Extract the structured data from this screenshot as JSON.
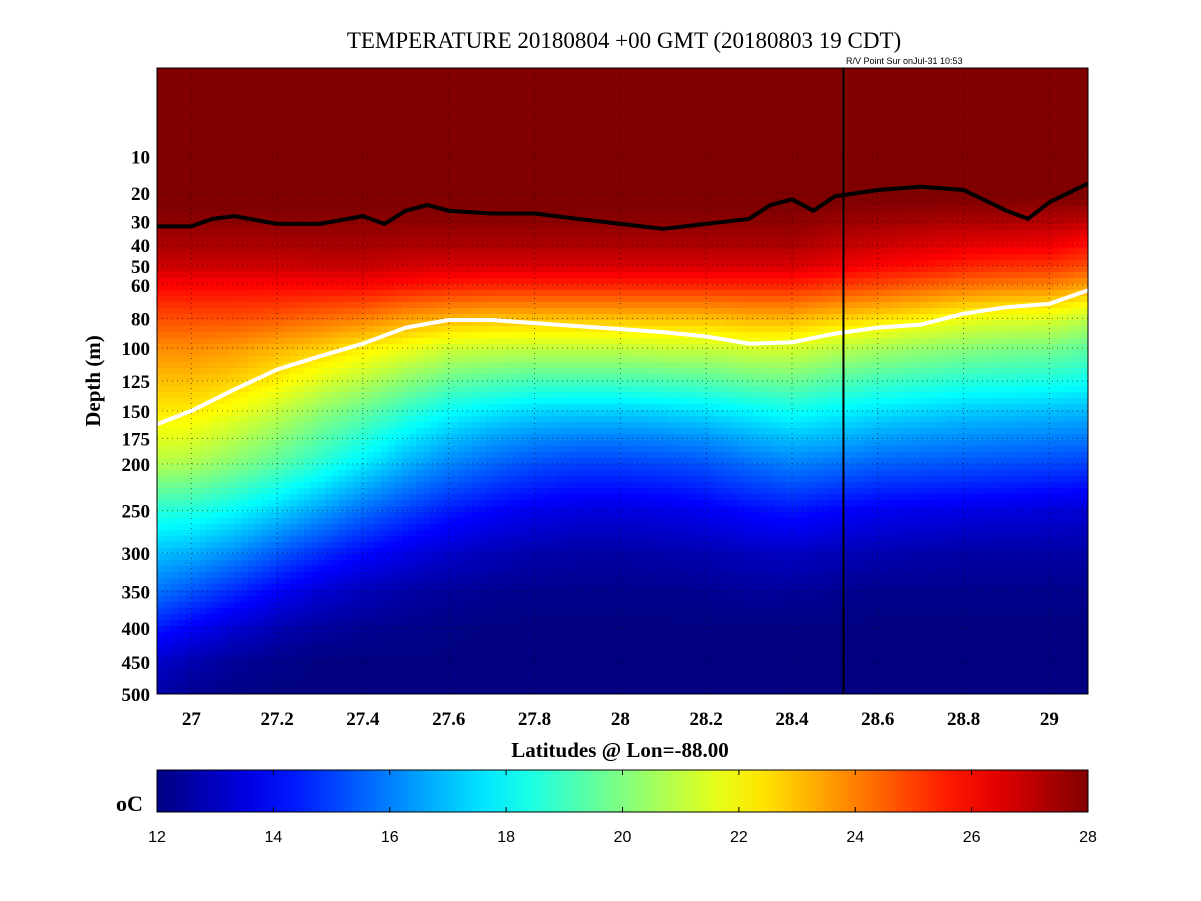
{
  "chart_data": {
    "type": "heatmap",
    "title": "TEMPERATURE 20180804 +00 GMT (20180803 19 CDT)",
    "note": "R/V Point Sur onJul-31 10:53",
    "xlabel": "Latitudes @ Lon=-88.00",
    "ylabel": "Depth (m)",
    "xlim": [
      26.92,
      29.09
    ],
    "ylim": [
      0,
      500
    ],
    "xticks": [
      27,
      27.2,
      27.4,
      27.6,
      27.8,
      28,
      28.2,
      28.4,
      28.6,
      28.8,
      29
    ],
    "xtick_labels": [
      "27",
      "27.2",
      "27.4",
      "27.6",
      "27.8",
      "28",
      "28.2",
      "28.4",
      "28.6",
      "28.8",
      "29"
    ],
    "yticks": [
      10,
      20,
      30,
      40,
      50,
      60,
      80,
      100,
      125,
      150,
      175,
      200,
      250,
      300,
      350,
      400,
      450,
      500
    ],
    "ytick_labels": [
      "10",
      "20",
      "30",
      "40",
      "50",
      "60",
      "80",
      "100",
      "125",
      "150",
      "175",
      "200",
      "250",
      "300",
      "350",
      "400",
      "450",
      "500"
    ],
    "y_scale": "square-root",
    "grid": true,
    "colorbar": {
      "label": "oC",
      "range": [
        12,
        28
      ],
      "ticks": [
        12,
        14,
        16,
        18,
        20,
        22,
        24,
        26,
        28
      ],
      "tick_labels": [
        "12",
        "14",
        "16",
        "18",
        "20",
        "22",
        "24",
        "26",
        "28"
      ],
      "colormap": "jet",
      "placement": "bottom"
    },
    "vertical_line": {
      "x": 28.52,
      "color": "#000000"
    },
    "isotherm_black": {
      "color": "#000000",
      "x": [
        26.92,
        27.0,
        27.05,
        27.1,
        27.2,
        27.3,
        27.4,
        27.45,
        27.5,
        27.55,
        27.6,
        27.7,
        27.8,
        27.9,
        28.0,
        28.1,
        28.2,
        28.3,
        28.35,
        28.4,
        28.45,
        28.5,
        28.6,
        28.7,
        28.8,
        28.9,
        28.95,
        29.0,
        29.09
      ],
      "y": [
        32,
        32,
        29,
        28,
        31,
        31,
        28,
        31,
        26,
        24,
        26,
        27,
        27,
        29,
        31,
        33,
        31,
        29,
        24,
        22,
        26,
        21,
        19,
        18,
        19,
        26,
        29,
        23,
        17
      ]
    },
    "isotherm_white": {
      "color": "#ffffff",
      "x": [
        26.92,
        27.0,
        27.1,
        27.2,
        27.3,
        27.4,
        27.5,
        27.6,
        27.7,
        27.8,
        27.9,
        28.0,
        28.1,
        28.2,
        28.3,
        28.4,
        28.5,
        28.6,
        28.7,
        28.8,
        28.9,
        29.0,
        29.09
      ],
      "y": [
        162,
        150,
        132,
        116,
        106,
        97,
        86,
        81,
        81,
        83,
        85,
        87,
        89,
        92,
        97,
        96,
        90,
        86,
        84,
        77,
        73,
        71,
        63
      ]
    },
    "temperature_field": {
      "x": [
        26.92,
        27.0,
        27.1,
        27.2,
        27.3,
        27.4,
        27.5,
        27.6,
        27.7,
        27.8,
        27.9,
        28.0,
        28.1,
        28.2,
        28.3,
        28.4,
        28.5,
        28.6,
        28.7,
        28.8,
        28.9,
        29.0,
        29.09
      ],
      "depth": [
        0,
        10,
        20,
        30,
        40,
        50,
        60,
        80,
        100,
        125,
        150,
        175,
        200,
        250,
        300,
        350,
        400,
        450,
        500
      ],
      "values": [
        [
          28.5,
          28.5,
          28.5,
          28.5,
          28.5,
          28.5,
          28.5,
          28.5,
          28.5,
          28.5,
          28.5,
          28.5,
          28.5,
          28.5,
          28.5,
          28.5,
          28.5,
          28.5,
          28.5,
          28.5,
          28.5,
          28.5,
          28.5
        ],
        [
          28.5,
          28.5,
          28.5,
          28.5,
          28.5,
          28.5,
          28.5,
          28.5,
          28.5,
          28.5,
          28.5,
          28.5,
          28.5,
          28.5,
          28.5,
          28.5,
          28.5,
          28.5,
          28.5,
          28.5,
          28.5,
          28.5,
          28.5
        ],
        [
          28.2,
          28.2,
          28.2,
          28.2,
          28.2,
          28.2,
          28.2,
          28.2,
          28.2,
          28.2,
          28.2,
          28.2,
          28.2,
          28.2,
          28.2,
          28.2,
          28.2,
          28.2,
          28.2,
          28.2,
          28.2,
          28.2,
          28.2
        ],
        [
          27.8,
          27.8,
          27.8,
          27.8,
          27.8,
          27.8,
          27.8,
          27.8,
          27.8,
          27.8,
          27.8,
          27.8,
          27.8,
          27.8,
          27.8,
          27.8,
          27.6,
          27.5,
          27.4,
          27.3,
          27.3,
          27.2,
          27.0
        ],
        [
          27.3,
          27.3,
          27.3,
          27.3,
          27.4,
          27.4,
          27.3,
          27.3,
          27.3,
          27.3,
          27.3,
          27.3,
          27.3,
          27.3,
          27.3,
          27.3,
          27.0,
          26.8,
          26.6,
          26.4,
          26.3,
          26.2,
          25.8
        ],
        [
          26.8,
          26.8,
          26.8,
          26.8,
          26.9,
          26.9,
          26.7,
          26.6,
          26.6,
          26.6,
          26.6,
          26.6,
          26.6,
          26.6,
          26.6,
          26.6,
          26.3,
          26.0,
          25.8,
          25.5,
          25.3,
          25.2,
          24.8
        ],
        [
          26.0,
          26.0,
          26.0,
          26.0,
          26.0,
          26.0,
          25.8,
          25.6,
          25.5,
          25.5,
          25.5,
          25.5,
          25.5,
          25.5,
          25.5,
          25.5,
          25.2,
          24.9,
          24.6,
          24.3,
          24.1,
          24.0,
          23.5
        ],
        [
          24.8,
          24.8,
          24.8,
          24.6,
          24.3,
          24.0,
          23.5,
          23.2,
          23.0,
          23.0,
          23.0,
          23.0,
          23.0,
          23.0,
          23.2,
          23.2,
          22.8,
          22.5,
          22.2,
          21.8,
          21.6,
          21.5,
          21.0
        ],
        [
          23.8,
          23.8,
          23.6,
          23.2,
          22.8,
          22.3,
          21.8,
          21.3,
          21.2,
          21.1,
          21.1,
          21.1,
          21.2,
          21.2,
          21.4,
          21.4,
          21.0,
          20.7,
          20.4,
          20.2,
          20.0,
          19.9,
          19.5
        ],
        [
          23.0,
          23.0,
          22.7,
          22.2,
          21.5,
          20.9,
          20.2,
          19.6,
          19.3,
          19.1,
          19.1,
          19.1,
          19.2,
          19.3,
          19.6,
          19.7,
          19.3,
          19.0,
          18.8,
          18.6,
          18.5,
          18.4,
          18.2
        ],
        [
          22.3,
          22.3,
          21.8,
          21.1,
          20.3,
          19.6,
          18.8,
          18.1,
          17.7,
          17.4,
          17.3,
          17.3,
          17.4,
          17.6,
          17.9,
          18.2,
          17.9,
          17.6,
          17.4,
          17.2,
          17.1,
          17.0,
          16.9
        ],
        [
          21.6,
          21.5,
          20.9,
          20.2,
          19.4,
          18.6,
          17.7,
          17.0,
          16.5,
          16.2,
          16.0,
          16.0,
          16.1,
          16.3,
          16.7,
          17.0,
          16.8,
          16.5,
          16.3,
          16.2,
          16.1,
          16.0,
          15.9
        ],
        [
          20.8,
          20.7,
          20.1,
          19.4,
          18.6,
          17.7,
          16.8,
          16.1,
          15.6,
          15.2,
          15.0,
          15.0,
          15.1,
          15.3,
          15.7,
          16.0,
          15.8,
          15.5,
          15.4,
          15.3,
          15.2,
          15.1,
          15.0
        ],
        [
          18.6,
          18.5,
          18.0,
          17.3,
          16.5,
          15.7,
          15.0,
          14.4,
          14.0,
          13.7,
          13.5,
          13.5,
          13.6,
          13.8,
          14.1,
          14.3,
          14.0,
          13.8,
          13.7,
          13.6,
          13.5,
          13.4,
          13.3
        ],
        [
          17.0,
          16.8,
          16.2,
          15.4,
          14.7,
          14.1,
          13.6,
          13.2,
          12.9,
          12.7,
          12.6,
          12.6,
          12.7,
          12.8,
          13.0,
          13.1,
          12.9,
          12.8,
          12.7,
          12.6,
          12.6,
          12.6,
          12.6
        ],
        [
          15.8,
          15.3,
          14.6,
          13.9,
          13.3,
          12.9,
          12.6,
          12.4,
          12.3,
          12.2,
          12.2,
          12.2,
          12.2,
          12.3,
          12.4,
          12.4,
          12.3,
          12.2,
          12.2,
          12.2,
          12.2,
          12.2,
          12.2
        ],
        [
          14.4,
          13.9,
          13.3,
          12.8,
          12.5,
          12.3,
          12.2,
          12.1,
          12.0,
          12.0,
          12.0,
          12.0,
          12.0,
          12.0,
          12.0,
          12.0,
          12.0,
          12.0,
          12.0,
          12.0,
          12.0,
          12.0,
          12.0
        ],
        [
          13.2,
          12.8,
          12.4,
          12.2,
          12.0,
          12.0,
          12.0,
          12.0,
          12.0,
          12.0,
          12.0,
          12.0,
          12.0,
          12.0,
          12.0,
          12.0,
          12.0,
          12.0,
          12.0,
          12.0,
          12.0,
          12.0,
          12.0
        ],
        [
          12.6,
          12.3,
          12.1,
          12.0,
          12.0,
          12.0,
          12.0,
          12.0,
          12.0,
          12.0,
          12.0,
          12.0,
          12.0,
          12.0,
          12.0,
          12.0,
          12.0,
          12.0,
          12.0,
          12.0,
          12.0,
          12.0,
          12.0
        ]
      ]
    }
  }
}
